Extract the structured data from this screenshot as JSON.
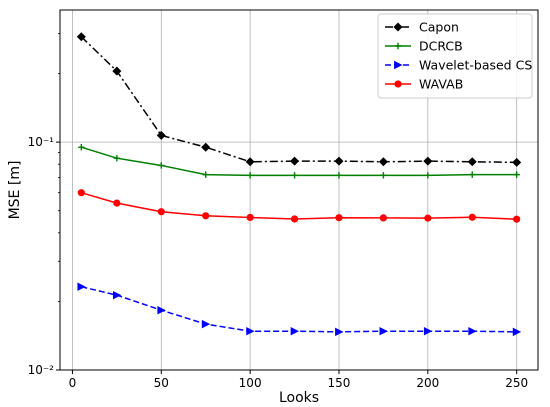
{
  "chart_data": {
    "type": "line",
    "xlabel": "Looks",
    "ylabel": "MSE [m]",
    "xlim": [
      -7,
      262
    ],
    "ylim": [
      0.01,
      0.38
    ],
    "yscale": "log",
    "grid": true,
    "legend_position": "top-right",
    "x_ticks": [
      0,
      50,
      100,
      150,
      200,
      250
    ],
    "x_tick_labels": [
      "0",
      "50",
      "100",
      "150",
      "200",
      "250"
    ],
    "y_ticks": [
      0.01,
      0.1
    ],
    "y_tick_labels": [
      "10⁻²",
      "10⁻¹"
    ],
    "x": [
      5,
      25,
      50,
      75,
      100,
      125,
      150,
      175,
      200,
      225,
      250
    ],
    "series": [
      {
        "name": "Capon",
        "color": "#000000",
        "line_style": "dashdot",
        "marker": "diamond",
        "values": [
          0.29,
          0.205,
          0.107,
          0.095,
          0.082,
          0.0825,
          0.0825,
          0.082,
          0.0825,
          0.082,
          0.0815
        ]
      },
      {
        "name": "DCRCB",
        "color": "#008000",
        "line_style": "solid",
        "marker": "plus",
        "values": [
          0.095,
          0.085,
          0.079,
          0.072,
          0.0715,
          0.0715,
          0.0715,
          0.0715,
          0.0715,
          0.072,
          0.072
        ]
      },
      {
        "name": "Wavelet-based CS",
        "color": "#0000ff",
        "line_style": "dashed",
        "marker": "triangle-right",
        "values": [
          0.0232,
          0.0213,
          0.0183,
          0.0159,
          0.0148,
          0.0148,
          0.0147,
          0.0148,
          0.0148,
          0.0148,
          0.0147
        ]
      },
      {
        "name": "WAVAB",
        "color": "#ff0000",
        "line_style": "solid",
        "marker": "circle",
        "values": [
          0.06,
          0.054,
          0.0495,
          0.0475,
          0.0467,
          0.046,
          0.0466,
          0.0465,
          0.0464,
          0.0468,
          0.0459
        ]
      }
    ]
  }
}
